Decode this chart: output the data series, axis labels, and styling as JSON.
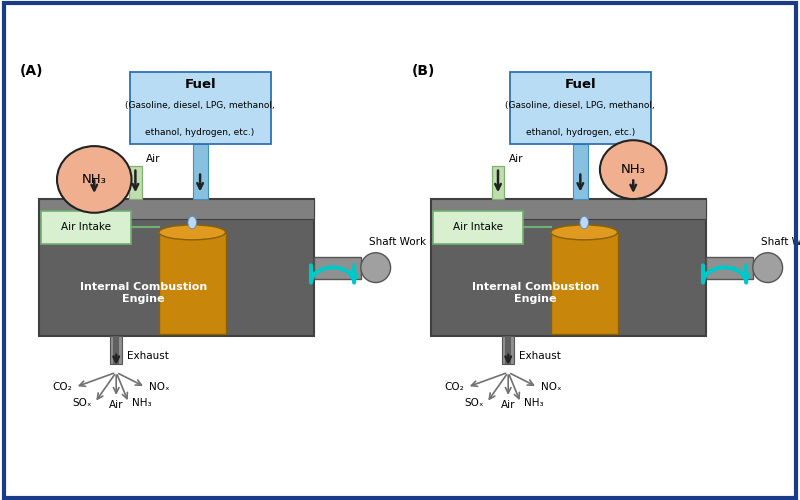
{
  "bg_color": "#ffffff",
  "border_color": "#1a3a8a",
  "engine_color": "#606060",
  "engine_top_color": "#808080",
  "cylinder_color": "#c8860a",
  "cylinder_top_color": "#e09a20",
  "air_intake_color": "#d8f0d0",
  "air_intake_edge": "#70b070",
  "air_tube_color": "#c0ddb0",
  "air_tube_edge": "#80b070",
  "nh3_color": "#f0b090",
  "nh3_edge": "#222222",
  "nh3_stem_color": "#f0cdb0",
  "nh3_stem_edge": "#c09070",
  "fuel_box_color": "#b8dcf4",
  "fuel_box_edge": "#3070b0",
  "fuel_pipe_color": "#88c0e0",
  "fuel_pipe_edge": "#4090c0",
  "shaft_color": "#909090",
  "shaft_edge": "#555555",
  "cyan_color": "#00c8c8",
  "exhaust_color": "#909090",
  "exhaust_inner": "#606060",
  "arrow_color": "#222222",
  "spread_arrow_color": "#707070",
  "engine_text_color": "#ffffff",
  "label_A": "(A)",
  "label_B": "(B)",
  "fuel_text_line1": "Fuel",
  "fuel_text_line2": "(Gasoline, diesel, LPG, methanol,",
  "fuel_text_line3": "ethanol, hydrogen, etc.)",
  "engine_text": "Internal Combustion\nEngine",
  "air_intake_text": "Air Intake",
  "shaft_work_text": "Shaft Work",
  "exhaust_text": "Exhaust",
  "air_text": "Air",
  "nh3_text": "NH₃",
  "co2_text": "CO₂",
  "nox_text": "NOₓ",
  "sox_text": "SOₓ",
  "nh3_ex_text": "NH₃",
  "air_ex_text": "Air"
}
